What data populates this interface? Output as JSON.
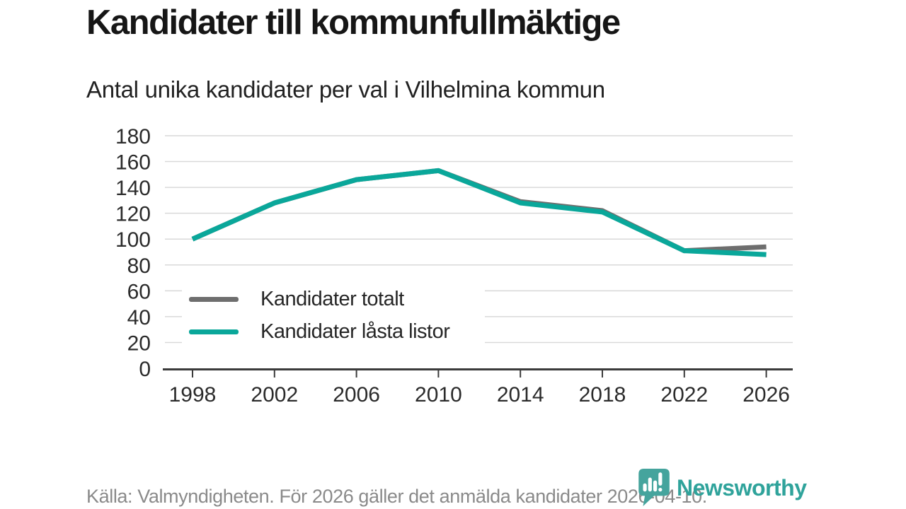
{
  "header": {
    "title": "Kandidater till kommunfullmäktige",
    "subtitle": "Antal unika kandidater per val i Vilhelmina kommun"
  },
  "chart_data": {
    "type": "line",
    "title": "Kandidater till kommunfullmäktige",
    "subtitle": "Antal unika kandidater per val i Vilhelmina kommun",
    "categories": [
      "1998",
      "2002",
      "2006",
      "2010",
      "2014",
      "2018",
      "2022",
      "2026"
    ],
    "series": [
      {
        "name": "Kandidater totalt",
        "color": "#6e6e6e",
        "values": [
          100,
          128,
          146,
          153,
          129,
          122,
          91,
          94
        ]
      },
      {
        "name": "Kandidater låsta listor",
        "color": "#0aa79a",
        "values": [
          100,
          128,
          146,
          153,
          128,
          121,
          91,
          88
        ]
      }
    ],
    "xlabel": "",
    "ylabel": "",
    "ylim": [
      0,
      180
    ],
    "ytick_step": 20,
    "grid": "horizontal",
    "legend_position": "inside-lower-left",
    "colors": {
      "grid": "#d9d9d9",
      "axis": "#3b3b3b",
      "tick_label": "#2b2b2b"
    },
    "line_width": 7
  },
  "footer": {
    "source": "Källa: Valmyndigheten. För 2026 gäller det anmälda kandidater 2026-04-10."
  },
  "logo": {
    "text": "Newsworthy",
    "icon_color": "#45a49d",
    "text_color": "#2fa39b"
  }
}
